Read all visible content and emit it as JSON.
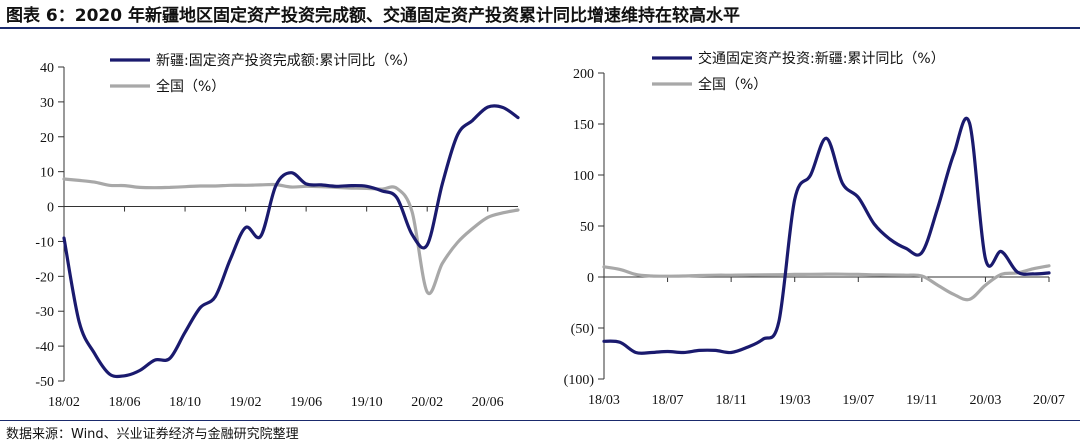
{
  "figure": {
    "title": "图表 6：2020 年新疆地区固定资产投资完成额、交通固定资产投资累计同比增速维持在较高水平",
    "source": "数据来源：Wind、兴业证券经济与金融研究院整理"
  },
  "colors": {
    "primary": "#1a1a6e",
    "secondary": "#a8a8a8"
  },
  "chart_data": [
    {
      "type": "line",
      "title": "",
      "xlabel": "",
      "ylabel": "",
      "ylim": [
        -50,
        40
      ],
      "yticks": [
        40,
        30,
        20,
        10,
        0,
        -10,
        -20,
        -30,
        -40,
        -50
      ],
      "ytick_labels": [
        "40",
        "30",
        "20",
        "10",
        "0",
        "-10",
        "-20",
        "-30",
        "-40",
        "-50"
      ],
      "x_tick_labels": [
        "18/02",
        "18/06",
        "18/10",
        "19/02",
        "19/06",
        "19/10",
        "20/02",
        "20/06"
      ],
      "x_tick_index": [
        0,
        4,
        8,
        12,
        16,
        20,
        24,
        28
      ],
      "x_count": 31,
      "legend_position": "top-center",
      "series": [
        {
          "name": "新疆:固定资产投资完成额:累计同比（%）",
          "color": "#1a1a6e",
          "values": [
            -9,
            -33,
            -42,
            -48,
            -48.5,
            -47,
            -44,
            -43.5,
            -36,
            -29,
            -25.8,
            -15,
            -6,
            -8.5,
            6,
            9.7,
            6.5,
            6.2,
            5.8,
            6,
            5.8,
            4.5,
            2.5,
            -8,
            -11,
            6.5,
            20.5,
            24.7,
            28.5,
            28.4,
            25.5
          ]
        },
        {
          "name": "全国（%）",
          "color": "#a8a8a8",
          "values": [
            7.9,
            7.5,
            7,
            6.1,
            6,
            5.5,
            5.4,
            5.5,
            5.7,
            5.9,
            5.9,
            6.1,
            6.1,
            6.2,
            6.3,
            5.6,
            5.8,
            5.7,
            5.5,
            5.3,
            5.2,
            5,
            5.2,
            -1.5,
            -24.5,
            -16.3,
            -10.3,
            -6.3,
            -3.1,
            -1.8,
            -1
          ]
        }
      ]
    },
    {
      "type": "line",
      "title": "",
      "xlabel": "",
      "ylabel": "",
      "ylim": [
        -100,
        200
      ],
      "yticks": [
        200,
        150,
        100,
        50,
        0,
        -50,
        -100
      ],
      "ytick_labels": [
        "200",
        "150",
        "100",
        "50",
        "0",
        "(50)",
        "(100)"
      ],
      "x_tick_labels": [
        "18/03",
        "18/07",
        "18/11",
        "19/03",
        "19/07",
        "19/11",
        "20/03",
        "20/07"
      ],
      "x_tick_index": [
        0,
        4,
        8,
        12,
        16,
        20,
        24,
        28
      ],
      "x_count": 29,
      "legend_position": "top-center",
      "series": [
        {
          "name": "交通固定资产投资:新疆:累计同比（%）",
          "color": "#1a1a6e",
          "values": [
            -63,
            -64,
            -74,
            -74,
            -73,
            -74,
            -72,
            -72,
            -74,
            -69,
            -61,
            -44,
            76,
            100,
            136,
            92,
            78,
            52,
            37,
            28,
            24,
            68,
            120,
            151,
            18,
            25,
            5,
            3,
            4
          ]
        },
        {
          "name": "全国（%）",
          "color": "#a8a8a8",
          "values": [
            10,
            7.5,
            2.5,
            1,
            0.8,
            1,
            1.5,
            1.8,
            1.8,
            2,
            2.2,
            2.3,
            2.5,
            2.6,
            2.8,
            2.7,
            2.6,
            2.2,
            2,
            1.8,
            1,
            -8,
            -17,
            -22,
            -8,
            2.5,
            4,
            8,
            11
          ]
        }
      ]
    }
  ]
}
